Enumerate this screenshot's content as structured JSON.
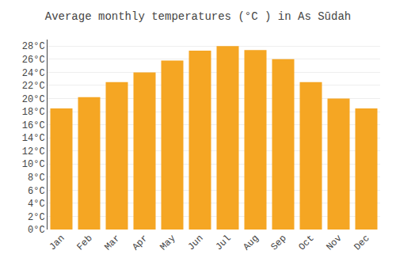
{
  "chart_data": {
    "type": "bar",
    "title": "Average monthly temperatures (°C ) in As Sūdah",
    "categories": [
      "Jan",
      "Feb",
      "Mar",
      "Apr",
      "May",
      "Jun",
      "Jul",
      "Aug",
      "Sep",
      "Oct",
      "Nov",
      "Dec"
    ],
    "values": [
      18.5,
      20.2,
      22.5,
      24.0,
      25.8,
      27.3,
      28.0,
      27.4,
      26.0,
      22.5,
      20.0,
      18.5
    ],
    "color": "#F5A623",
    "ylim": [
      0,
      29
    ],
    "yticks": [
      {
        "value": 0,
        "label": "0°C"
      },
      {
        "value": 2,
        "label": "2°C"
      },
      {
        "value": 4,
        "label": "4°C"
      },
      {
        "value": 6,
        "label": "6°C"
      },
      {
        "value": 8,
        "label": "8°C"
      },
      {
        "value": 10,
        "label": "10°C"
      },
      {
        "value": 12,
        "label": "12°C"
      },
      {
        "value": 14,
        "label": "14°C"
      },
      {
        "value": 16,
        "label": "16°C"
      },
      {
        "value": 18,
        "label": "18°C"
      },
      {
        "value": 20,
        "label": "20°C"
      },
      {
        "value": 22,
        "label": "22°C"
      },
      {
        "value": 24,
        "label": "24°C"
      },
      {
        "value": 26,
        "label": "26°C"
      },
      {
        "value": 28,
        "label": "28°C"
      }
    ],
    "grid": true
  }
}
